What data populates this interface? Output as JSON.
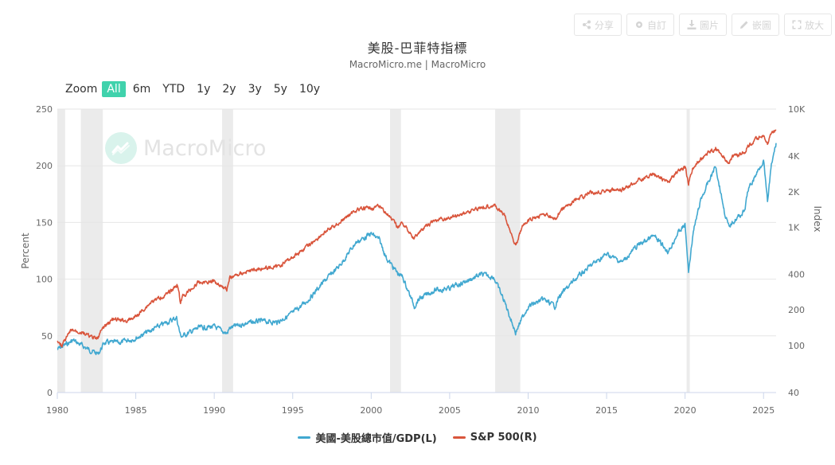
{
  "toolbar": {
    "share": "分享",
    "custom": "自訂",
    "image": "圖片",
    "embed": "嵌圖",
    "expand": "放大"
  },
  "chart_title": "美股-巴菲特指標",
  "chart_subtitle": "MacroMicro.me | MacroMicro",
  "watermark": "MacroMicro",
  "zoom": {
    "label": "Zoom",
    "buttons": [
      "All",
      "6m",
      "YTD",
      "1y",
      "2y",
      "3y",
      "5y",
      "10y"
    ],
    "active": "All"
  },
  "colors": {
    "left_series": "#41a8d0",
    "right_series": "#d9553c",
    "recession": "#ebebeb",
    "accent": "#40d2ac"
  },
  "chart_data": {
    "type": "line",
    "x_range": [
      1980,
      2025.8
    ],
    "x_ticks": [
      1980,
      1985,
      1990,
      1995,
      2000,
      2005,
      2010,
      2015,
      2020,
      2025
    ],
    "left_axis": {
      "label": "Percent",
      "ticks": [
        0,
        50,
        100,
        150,
        200,
        250
      ],
      "range": [
        0,
        250
      ]
    },
    "right_axis": {
      "label": "Index",
      "scale": "log",
      "ticks": [
        40,
        100,
        200,
        400,
        1000,
        2000,
        4000,
        10000
      ],
      "tick_labels": [
        "40",
        "100",
        "200",
        "400",
        "1K",
        "2K",
        "4K",
        "10K"
      ],
      "range": [
        40,
        10000
      ]
    },
    "recessions": [
      [
        1980.0,
        1980.5
      ],
      [
        1981.5,
        1982.9
      ],
      [
        1990.5,
        1991.2
      ],
      [
        2001.2,
        2001.9
      ],
      [
        2007.9,
        2009.5
      ],
      [
        2020.1,
        2020.3
      ]
    ],
    "series": [
      {
        "name": "美國-美股總市值/GDP(L)",
        "axis": "left",
        "points": [
          [
            1980,
            38
          ],
          [
            1980.5,
            42
          ],
          [
            1981,
            46
          ],
          [
            1981.5,
            42
          ],
          [
            1982,
            38
          ],
          [
            1982.6,
            34
          ],
          [
            1983,
            44
          ],
          [
            1984,
            44
          ],
          [
            1985,
            48
          ],
          [
            1986,
            55
          ],
          [
            1987,
            62
          ],
          [
            1987.6,
            66
          ],
          [
            1987.85,
            50
          ],
          [
            1988,
            50
          ],
          [
            1989,
            57
          ],
          [
            1990,
            58
          ],
          [
            1990.8,
            52
          ],
          [
            1991,
            57
          ],
          [
            1992,
            61
          ],
          [
            1993,
            63
          ],
          [
            1994,
            62
          ],
          [
            1995,
            70
          ],
          [
            1996,
            82
          ],
          [
            1997,
            98
          ],
          [
            1998,
            112
          ],
          [
            1999,
            132
          ],
          [
            2000,
            140
          ],
          [
            2000.5,
            135
          ],
          [
            2001,
            118
          ],
          [
            2001.7,
            105
          ],
          [
            2002,
            102
          ],
          [
            2002.75,
            76
          ],
          [
            2003,
            82
          ],
          [
            2004,
            90
          ],
          [
            2005,
            92
          ],
          [
            2006,
            98
          ],
          [
            2007,
            104
          ],
          [
            2007.8,
            102
          ],
          [
            2008.5,
            80
          ],
          [
            2009.2,
            53
          ],
          [
            2009.6,
            65
          ],
          [
            2010,
            76
          ],
          [
            2011,
            82
          ],
          [
            2011.7,
            76
          ],
          [
            2012,
            85
          ],
          [
            2013,
            100
          ],
          [
            2014,
            112
          ],
          [
            2015,
            122
          ],
          [
            2016,
            115
          ],
          [
            2017,
            130
          ],
          [
            2018,
            138
          ],
          [
            2018.95,
            124
          ],
          [
            2019.5,
            140
          ],
          [
            2020.0,
            148
          ],
          [
            2020.22,
            106
          ],
          [
            2020.5,
            140
          ],
          [
            2021,
            170
          ],
          [
            2021.95,
            200
          ],
          [
            2022.5,
            160
          ],
          [
            2022.8,
            145
          ],
          [
            2023,
            150
          ],
          [
            2023.8,
            160
          ],
          [
            2024,
            178
          ],
          [
            2024.8,
            200
          ],
          [
            2025.0,
            205
          ],
          [
            2025.25,
            168
          ],
          [
            2025.5,
            200
          ],
          [
            2025.8,
            220
          ]
        ]
      },
      {
        "name": "S&P 500(R)",
        "axis": "right",
        "points": [
          [
            1980,
            108
          ],
          [
            1980.3,
            100
          ],
          [
            1980.9,
            135
          ],
          [
            1981.5,
            130
          ],
          [
            1982.5,
            112
          ],
          [
            1982.9,
            140
          ],
          [
            1983.5,
            165
          ],
          [
            1984.5,
            162
          ],
          [
            1985,
            175
          ],
          [
            1986,
            235
          ],
          [
            1987,
            270
          ],
          [
            1987.65,
            330
          ],
          [
            1987.85,
            230
          ],
          [
            1988,
            260
          ],
          [
            1989,
            340
          ],
          [
            1990,
            350
          ],
          [
            1990.8,
            300
          ],
          [
            1991,
            375
          ],
          [
            1992,
            420
          ],
          [
            1993,
            450
          ],
          [
            1994,
            460
          ],
          [
            1995,
            560
          ],
          [
            1996,
            700
          ],
          [
            1997,
            900
          ],
          [
            1998,
            1100
          ],
          [
            1999,
            1400
          ],
          [
            2000,
            1460
          ],
          [
            2000.6,
            1500
          ],
          [
            2001,
            1300
          ],
          [
            2001.7,
            1000
          ],
          [
            2002,
            1100
          ],
          [
            2002.75,
            800
          ],
          [
            2003,
            900
          ],
          [
            2004,
            1130
          ],
          [
            2005,
            1200
          ],
          [
            2006,
            1330
          ],
          [
            2007,
            1480
          ],
          [
            2007.8,
            1550
          ],
          [
            2008.5,
            1250
          ],
          [
            2009.2,
            700
          ],
          [
            2009.6,
            1000
          ],
          [
            2010,
            1130
          ],
          [
            2011,
            1300
          ],
          [
            2011.7,
            1150
          ],
          [
            2012,
            1350
          ],
          [
            2013,
            1700
          ],
          [
            2014,
            1950
          ],
          [
            2015,
            2060
          ],
          [
            2016,
            2050
          ],
          [
            2017,
            2500
          ],
          [
            2018,
            2800
          ],
          [
            2018.95,
            2400
          ],
          [
            2019.5,
            2950
          ],
          [
            2020.0,
            3250
          ],
          [
            2020.22,
            2300
          ],
          [
            2020.5,
            3200
          ],
          [
            2021,
            3800
          ],
          [
            2021.95,
            4700
          ],
          [
            2022.5,
            3800
          ],
          [
            2022.8,
            3600
          ],
          [
            2023,
            3950
          ],
          [
            2023.8,
            4300
          ],
          [
            2024,
            4850
          ],
          [
            2024.8,
            5900
          ],
          [
            2025.0,
            6000
          ],
          [
            2025.25,
            5000
          ],
          [
            2025.5,
            6200
          ],
          [
            2025.8,
            6600
          ]
        ]
      }
    ]
  },
  "legend": {
    "left": "美國-美股總市值/GDP(L)",
    "right": "S&P 500(R)"
  }
}
